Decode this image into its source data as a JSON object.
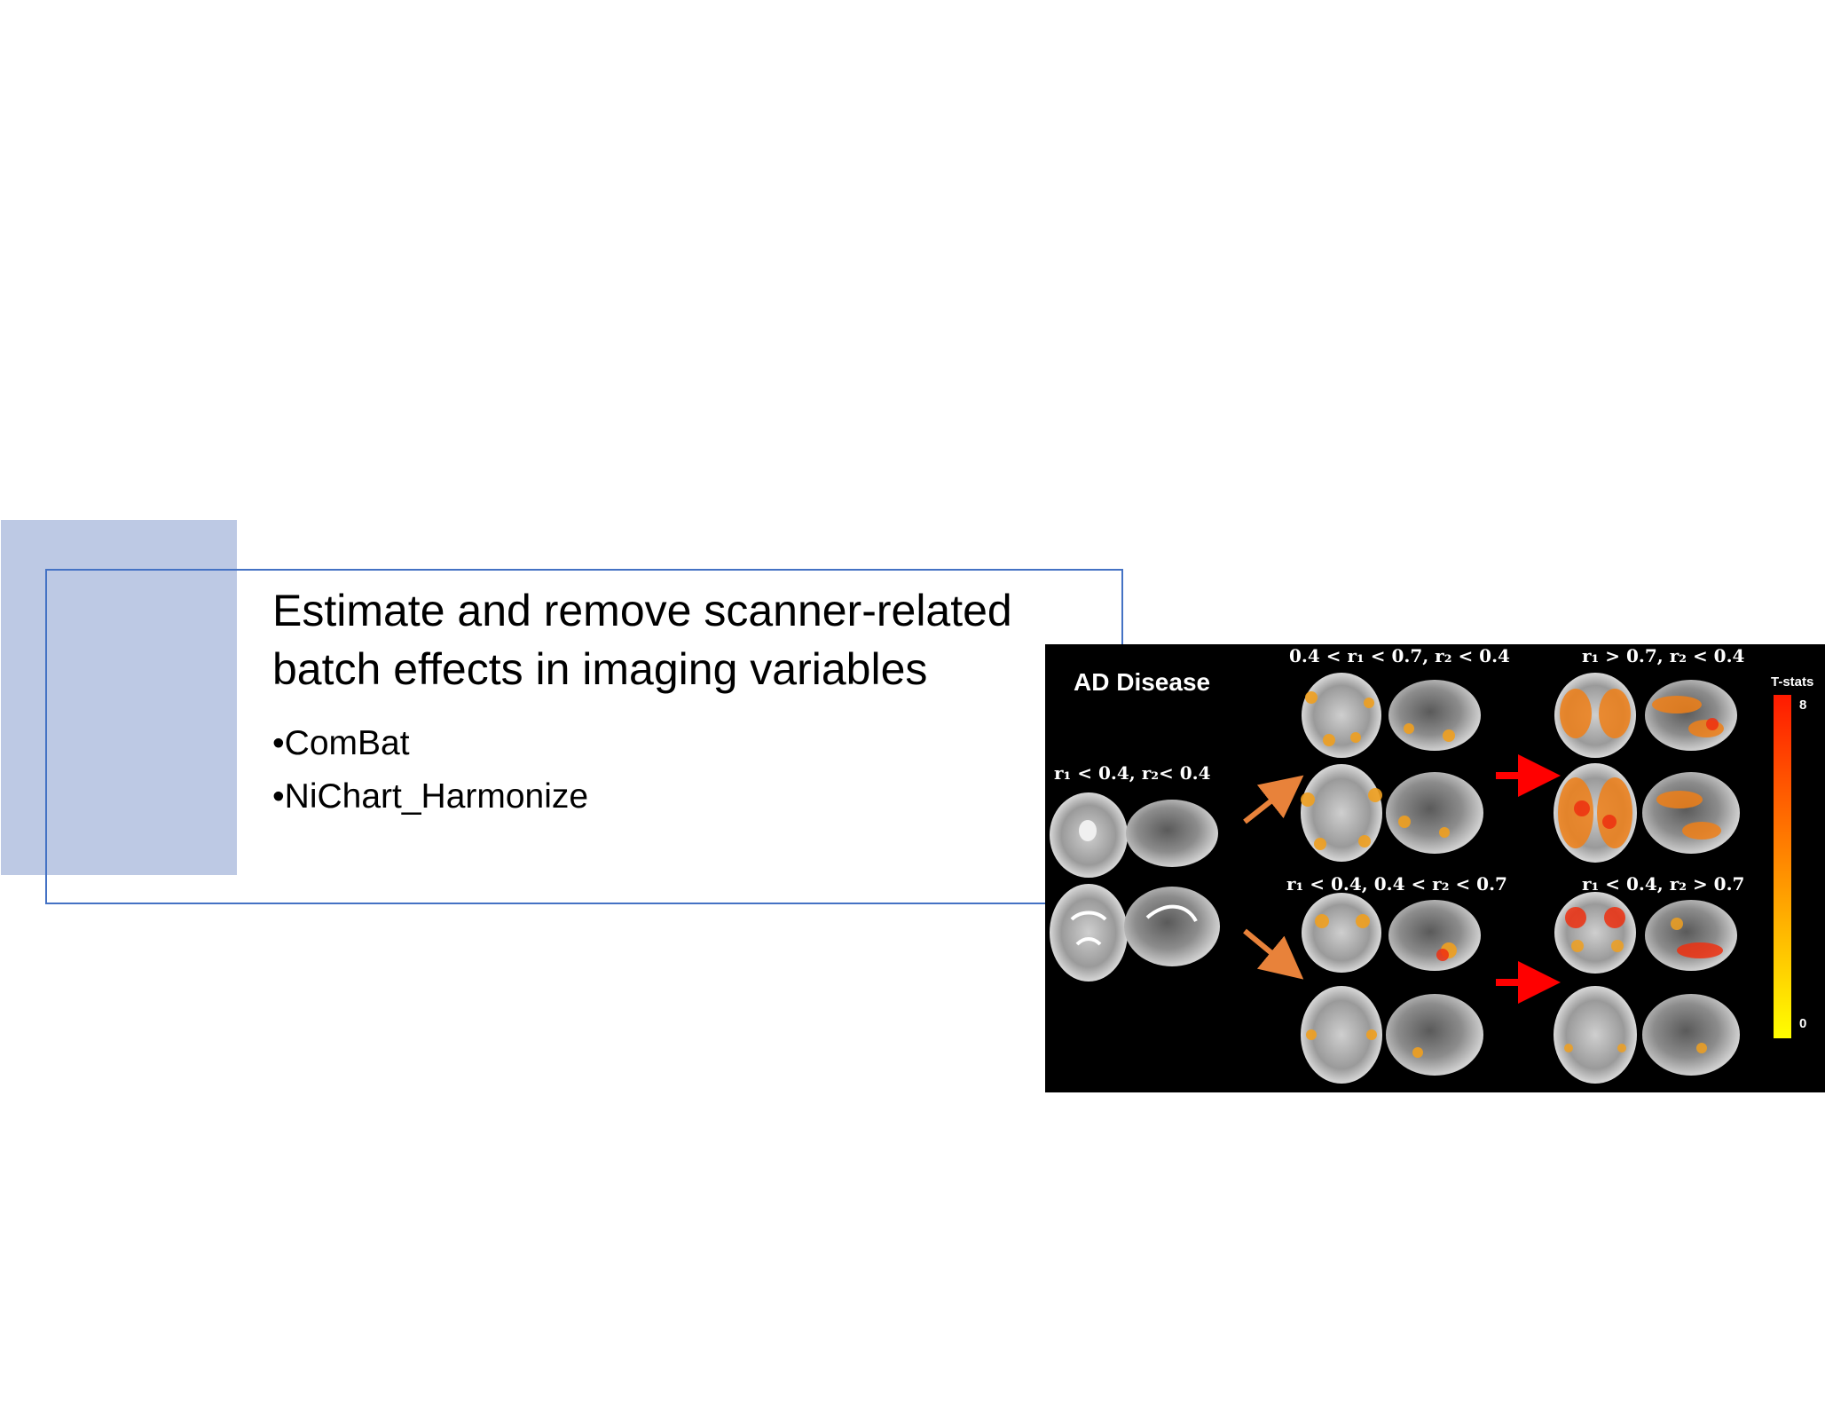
{
  "slide": {
    "title": "Estimate and remove scanner-related batch effects in imaging variables",
    "bullets": [
      "ComBat",
      "NiChart_Harmonize"
    ]
  },
  "figure": {
    "title": "AD Disease",
    "conditions": {
      "baseline": "r₁ < 0.4, r₂< 0.4",
      "top_middle": "0.4 < r₁ < 0.7, r₂ < 0.4",
      "top_right": "r₁ > 0.7, r₂ < 0.4",
      "bottom_middle": "r₁ < 0.4, 0.4 < r₂ < 0.7",
      "bottom_right": "r₁ < 0.4, r₂ > 0.7"
    },
    "colorbar": {
      "label": "T-stats",
      "max": "8",
      "min": "0",
      "high_color": "#ff1a00",
      "low_color": "#ffff00"
    },
    "arrow_colors": {
      "diagonal": "#e8823a",
      "horizontal": "#ff0000"
    }
  }
}
